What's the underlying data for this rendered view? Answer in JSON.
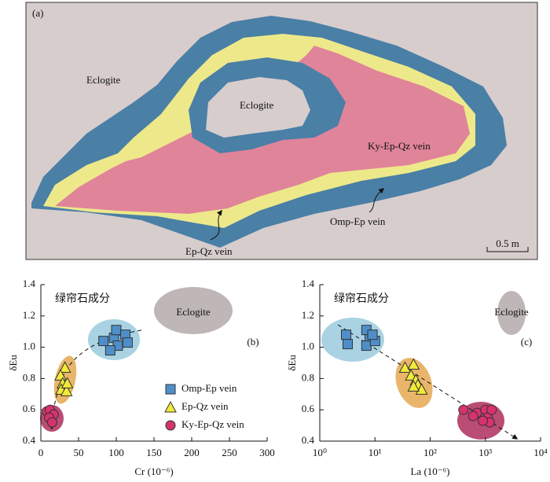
{
  "map": {
    "panel_label": "(a)",
    "labels": [
      "Eclogite",
      "Eclogite",
      "Ky-Ep-Qz vein",
      "Omp-Ep vein",
      "Ep-Qz vein"
    ],
    "scale_bar": "0.5 m"
  },
  "chart_data": [
    {
      "type": "scatter",
      "panel_label": "(b)",
      "annotation": "绿帘石成分",
      "field_label": "Eclogite",
      "x_label": "Cr (10⁻⁶)",
      "y_label": "δEu",
      "xlog": false,
      "xlim": [
        0,
        300
      ],
      "xticks": [
        0,
        50,
        100,
        150,
        200,
        250,
        300
      ],
      "ylim": [
        0.4,
        1.4
      ],
      "yticks": [
        0.4,
        0.6,
        0.8,
        {
          "value": 1,
          "label": "1.0"
        },
        1.2,
        1.4
      ],
      "legend": "lower right",
      "series": [
        {
          "name": "Omp-Ep vein",
          "color": "#4f8fc9",
          "marker": "square",
          "x": [
            83,
            97,
            100,
            112,
            102,
            115,
            92
          ],
          "values": [
            1.04,
            1.06,
            1.11,
            1.08,
            1.01,
            1.03,
            0.98
          ]
        },
        {
          "name": "Ep-Qz vein",
          "color": "#f2ea3a",
          "marker": "triangle",
          "x": [
            32,
            26,
            29,
            27,
            34,
            35
          ],
          "values": [
            0.87,
            0.82,
            0.77,
            0.73,
            0.72,
            0.77
          ]
        },
        {
          "name": "Ky-Ep-Qz vein",
          "color": "#d6336c",
          "marker": "circle",
          "x": [
            8,
            12,
            17,
            11,
            15
          ],
          "values": [
            0.59,
            0.6,
            0.57,
            0.55,
            0.52
          ]
        }
      ]
    },
    {
      "type": "scatter",
      "panel_label": "(c)",
      "annotation": "绿帘石成分",
      "field_label": "Eclogite",
      "x_label": "La (10⁻⁶)",
      "y_label": "δEu",
      "xlog": true,
      "xlim": [
        1,
        10000
      ],
      "xticks": [
        {
          "value": 1,
          "label": "10⁰"
        },
        {
          "value": 10,
          "label": "10¹"
        },
        {
          "value": 100,
          "label": "10²"
        },
        {
          "value": 1000,
          "label": "10³"
        },
        {
          "value": 10000,
          "label": "10⁴"
        }
      ],
      "ylim": [
        0.4,
        1.4
      ],
      "yticks": [
        0.4,
        0.6,
        0.8,
        {
          "value": 1,
          "label": "1.0"
        },
        1.2,
        1.4
      ],
      "legend": false,
      "series": [
        {
          "color": "#4f8fc9",
          "marker": "square",
          "x": [
            3,
            3.2,
            7,
            8,
            7,
            10,
            9
          ],
          "values": [
            1.08,
            1.02,
            1.11,
            1.05,
            1.01,
            1.04,
            1.08
          ]
        },
        {
          "color": "#f2ea3a",
          "marker": "triangle",
          "x": [
            35,
            50,
            45,
            55,
            60,
            70,
            50
          ],
          "values": [
            0.87,
            0.89,
            0.82,
            0.79,
            0.76,
            0.73,
            0.75
          ]
        },
        {
          "color": "#d6336c",
          "marker": "circle",
          "x": [
            400,
            700,
            1000,
            1100,
            1200,
            900,
            600,
            1300
          ],
          "values": [
            0.6,
            0.58,
            0.6,
            0.55,
            0.52,
            0.53,
            0.56,
            0.6
          ]
        }
      ]
    }
  ]
}
